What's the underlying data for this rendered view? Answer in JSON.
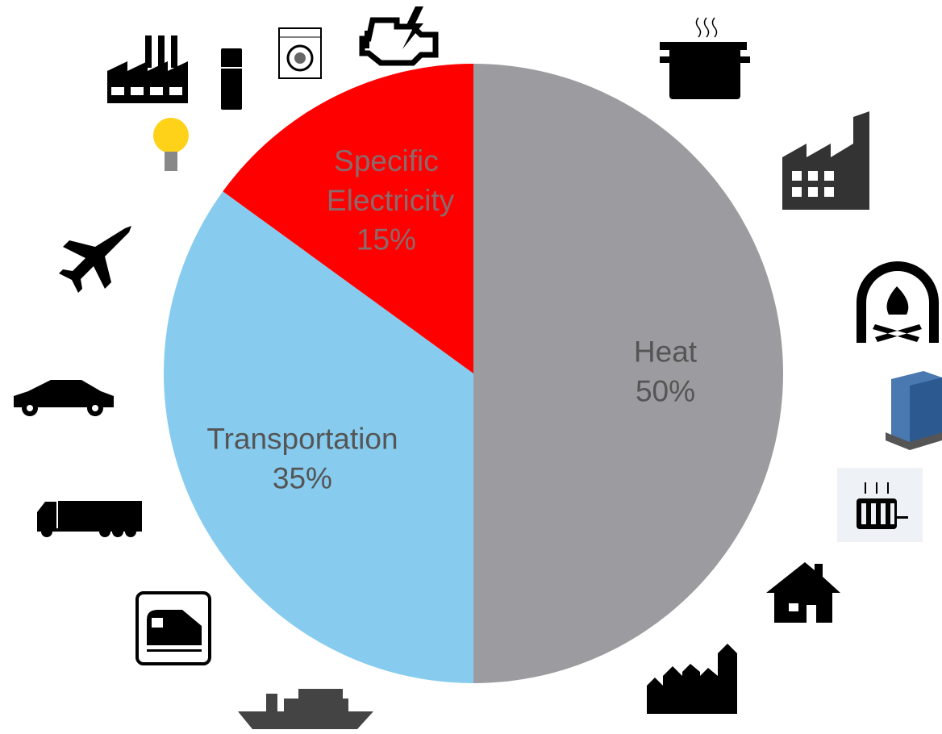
{
  "chart_data": {
    "type": "pie",
    "categories": [
      "Heat",
      "Transportation",
      "Specific Electricity"
    ],
    "values": [
      50,
      35,
      15
    ],
    "value_labels": [
      "50%",
      "35%",
      "15%"
    ],
    "colors": [
      "#9c9b9f",
      "#87ccef",
      "#ff0000"
    ],
    "label_colors": [
      "#555555",
      "#555555",
      "#8a6a6a"
    ]
  }
}
